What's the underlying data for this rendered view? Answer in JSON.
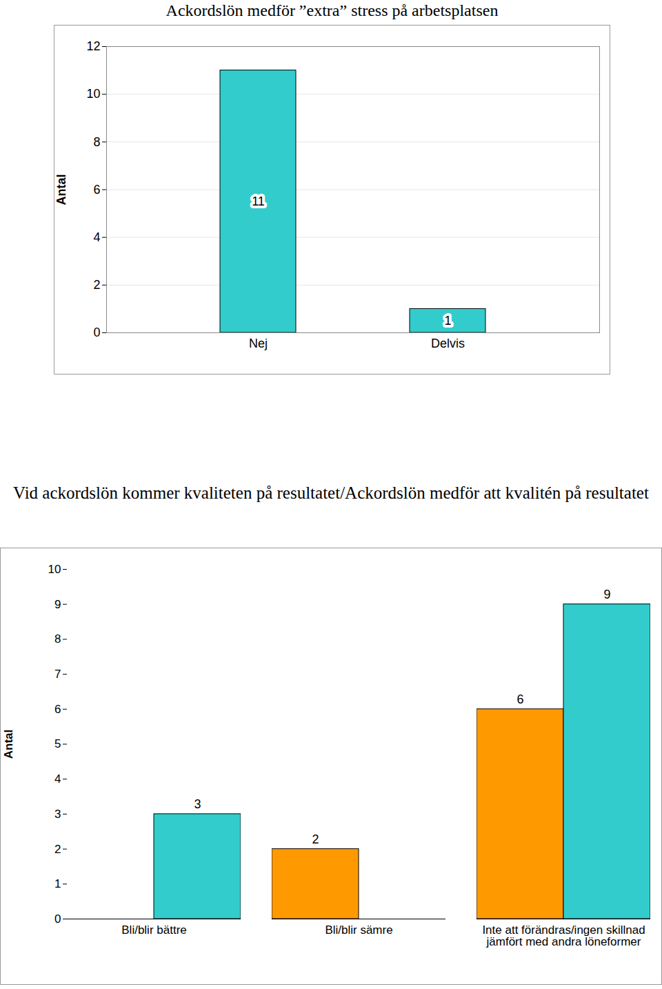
{
  "chart_data": [
    {
      "type": "bar",
      "title": "Ackordslön medför ”extra” stress på arbetsplatsen",
      "categories": [
        "Nej",
        "Delvis"
      ],
      "values": [
        11,
        1
      ],
      "color": "#33CCCC",
      "ylabel": "Antal",
      "ylim": [
        0,
        12
      ],
      "yticks": [
        0,
        2,
        4,
        6,
        8,
        10,
        12
      ],
      "grid": true,
      "data_labels": true
    },
    {
      "type": "bar",
      "title": "Vid ackordslön kommer kvaliteten på resultatet/Ackordslön medför att kvalitén på resultatet",
      "categories": [
        "Bli/blir bättre",
        "Bli/blir sämre",
        "Inte att förändras/ingen skillnad jämfört med andra löneformer"
      ],
      "series": [
        {
          "color": "#FF9900",
          "values": [
            null,
            2,
            6
          ]
        },
        {
          "color": "#33CCCC",
          "values": [
            3,
            null,
            9
          ]
        }
      ],
      "ylabel": "Antal",
      "ylim": [
        0,
        10
      ],
      "yticks": [
        0,
        1,
        2,
        3,
        4,
        5,
        6,
        7,
        8,
        9,
        10
      ],
      "grid": false,
      "data_labels": true
    }
  ]
}
